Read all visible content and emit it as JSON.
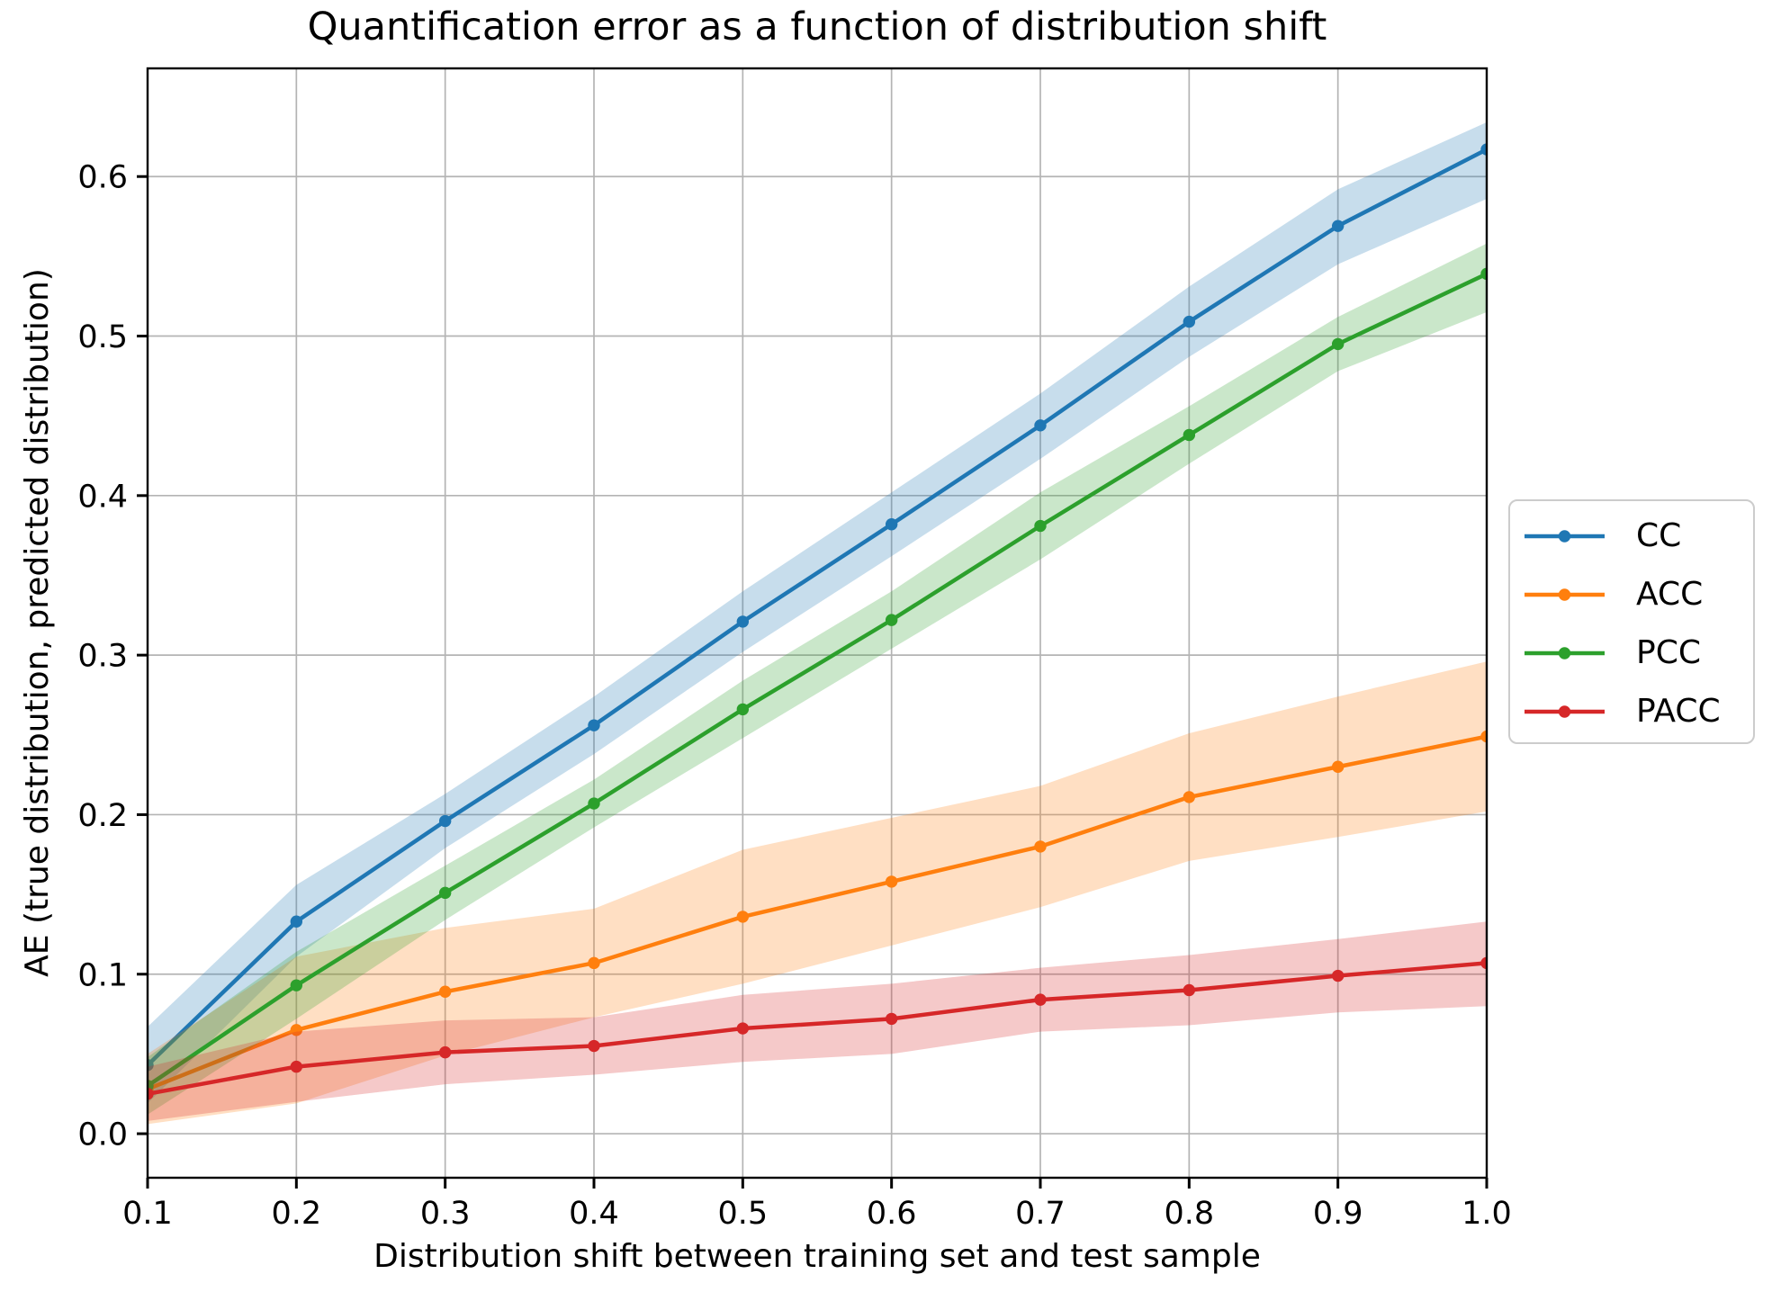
{
  "figure": {
    "background": "#ffffff"
  },
  "chart_data": {
    "type": "line",
    "title": "Quantification error as a function of distribution shift",
    "xlabel": "Distribution shift between training set and test sample",
    "ylabel": "AE (true distribution, predicted distribution)",
    "x": [
      0.1,
      0.2,
      0.3,
      0.4,
      0.5,
      0.6,
      0.7,
      0.8,
      0.9,
      1.0
    ],
    "xtick_labels": [
      "0.1",
      "0.2",
      "0.3",
      "0.4",
      "0.5",
      "0.6",
      "0.7",
      "0.8",
      "0.9",
      "1.0"
    ],
    "ytick_values": [
      0.0,
      0.1,
      0.2,
      0.3,
      0.4,
      0.5,
      0.6
    ],
    "ytick_labels": [
      "0.0",
      "0.1",
      "0.2",
      "0.3",
      "0.4",
      "0.5",
      "0.6"
    ],
    "xlim": [
      0.1,
      1.0
    ],
    "ylim": [
      -0.0276,
      0.6678
    ],
    "grid": true,
    "grid_color": "#b4b4b4",
    "axis_color": "#000000",
    "legend_border_color": "#cccccc",
    "legend_position": "center-right-outside",
    "band_opacity": 0.25,
    "marker": "circle",
    "series": [
      {
        "name": "CC",
        "color": "#1f77b4",
        "values": [
          0.043,
          0.133,
          0.196,
          0.256,
          0.321,
          0.382,
          0.444,
          0.509,
          0.569,
          0.617
        ],
        "band_lower": [
          0.019,
          0.111,
          0.179,
          0.238,
          0.302,
          0.362,
          0.423,
          0.487,
          0.545,
          0.586
        ],
        "band_upper": [
          0.067,
          0.156,
          0.213,
          0.274,
          0.34,
          0.402,
          0.464,
          0.531,
          0.592,
          0.634
        ]
      },
      {
        "name": "ACC",
        "color": "#ff7f0e",
        "values": [
          0.028,
          0.065,
          0.089,
          0.107,
          0.136,
          0.158,
          0.18,
          0.211,
          0.23,
          0.249
        ],
        "band_lower": [
          0.006,
          0.019,
          0.049,
          0.073,
          0.094,
          0.118,
          0.142,
          0.171,
          0.186,
          0.202
        ],
        "band_upper": [
          0.05,
          0.111,
          0.129,
          0.141,
          0.178,
          0.198,
          0.218,
          0.251,
          0.274,
          0.296
        ]
      },
      {
        "name": "PCC",
        "color": "#2ca02c",
        "values": [
          0.03,
          0.093,
          0.151,
          0.207,
          0.266,
          0.322,
          0.381,
          0.438,
          0.495,
          0.539
        ],
        "band_lower": [
          0.012,
          0.072,
          0.134,
          0.192,
          0.248,
          0.304,
          0.36,
          0.42,
          0.478,
          0.515
        ],
        "band_upper": [
          0.048,
          0.114,
          0.168,
          0.222,
          0.284,
          0.34,
          0.402,
          0.456,
          0.512,
          0.558
        ]
      },
      {
        "name": "PACC",
        "color": "#d62728",
        "values": [
          0.025,
          0.042,
          0.051,
          0.055,
          0.066,
          0.072,
          0.084,
          0.09,
          0.099,
          0.107
        ],
        "band_lower": [
          0.008,
          0.02,
          0.031,
          0.037,
          0.045,
          0.05,
          0.064,
          0.068,
          0.076,
          0.08
        ],
        "band_upper": [
          0.042,
          0.064,
          0.071,
          0.073,
          0.087,
          0.094,
          0.104,
          0.112,
          0.122,
          0.133
        ]
      }
    ]
  }
}
